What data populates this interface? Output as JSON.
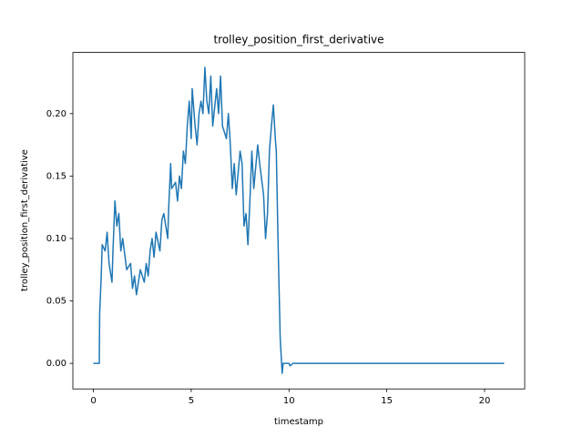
{
  "chart_data": {
    "type": "line",
    "title": "trolley_position_first_derivative",
    "x_label": "timestamp",
    "y_label": "trolley_position_first_derivative",
    "x": [
      0,
      0.3,
      0.32,
      0.4,
      0.45,
      0.6,
      0.7,
      0.8,
      0.95,
      1.0,
      1.1,
      1.2,
      1.3,
      1.4,
      1.5,
      1.7,
      1.9,
      2.0,
      2.1,
      2.2,
      2.4,
      2.6,
      2.7,
      2.8,
      2.9,
      3.0,
      3.1,
      3.2,
      3.4,
      3.5,
      3.6,
      3.7,
      3.8,
      3.85,
      3.95,
      4.0,
      4.2,
      4.3,
      4.4,
      4.5,
      4.6,
      4.7,
      4.8,
      4.9,
      5.0,
      5.05,
      5.2,
      5.3,
      5.4,
      5.5,
      5.6,
      5.7,
      5.8,
      5.9,
      6.0,
      6.1,
      6.3,
      6.4,
      6.5,
      6.6,
      6.8,
      6.9,
      7.0,
      7.1,
      7.2,
      7.3,
      7.5,
      7.6,
      7.7,
      7.8,
      7.9,
      8.0,
      8.1,
      8.2,
      8.4,
      8.5,
      8.7,
      8.8,
      8.9,
      9.0,
      9.1,
      9.2,
      9.3,
      9.35,
      9.45,
      9.55,
      9.65,
      9.7,
      10.0,
      10.05,
      10.2,
      21
    ],
    "series": [
      {
        "color": "#1f77b4",
        "values": [
          0,
          0,
          0.04,
          0.07,
          0.095,
          0.09,
          0.105,
          0.08,
          0.065,
          0.09,
          0.13,
          0.11,
          0.12,
          0.09,
          0.1,
          0.075,
          0.08,
          0.06,
          0.07,
          0.055,
          0.075,
          0.065,
          0.08,
          0.07,
          0.09,
          0.1,
          0.085,
          0.105,
          0.09,
          0.115,
          0.12,
          0.11,
          0.1,
          0.125,
          0.16,
          0.14,
          0.145,
          0.13,
          0.15,
          0.14,
          0.17,
          0.16,
          0.19,
          0.21,
          0.18,
          0.22,
          0.19,
          0.175,
          0.2,
          0.21,
          0.2,
          0.237,
          0.21,
          0.2,
          0.23,
          0.19,
          0.22,
          0.2,
          0.23,
          0.19,
          0.18,
          0.2,
          0.175,
          0.14,
          0.16,
          0.135,
          0.17,
          0.16,
          0.11,
          0.12,
          0.095,
          0.13,
          0.17,
          0.14,
          0.175,
          0.16,
          0.135,
          0.1,
          0.12,
          0.17,
          0.19,
          0.207,
          0.18,
          0.17,
          0.09,
          0.02,
          -0.008,
          0,
          0,
          -0.002,
          0,
          0
        ]
      }
    ],
    "xlim": [
      -1.05,
      22.05
    ],
    "ylim": [
      -0.0205,
      0.249
    ],
    "xticks": [
      0,
      5,
      10,
      15,
      20
    ],
    "yticks": [
      {
        "value": 0,
        "label": "0.00"
      },
      0.05,
      {
        "value": 0.1,
        "label": "0.10"
      },
      0.15,
      {
        "value": 0.2,
        "label": "0.20"
      }
    ]
  }
}
